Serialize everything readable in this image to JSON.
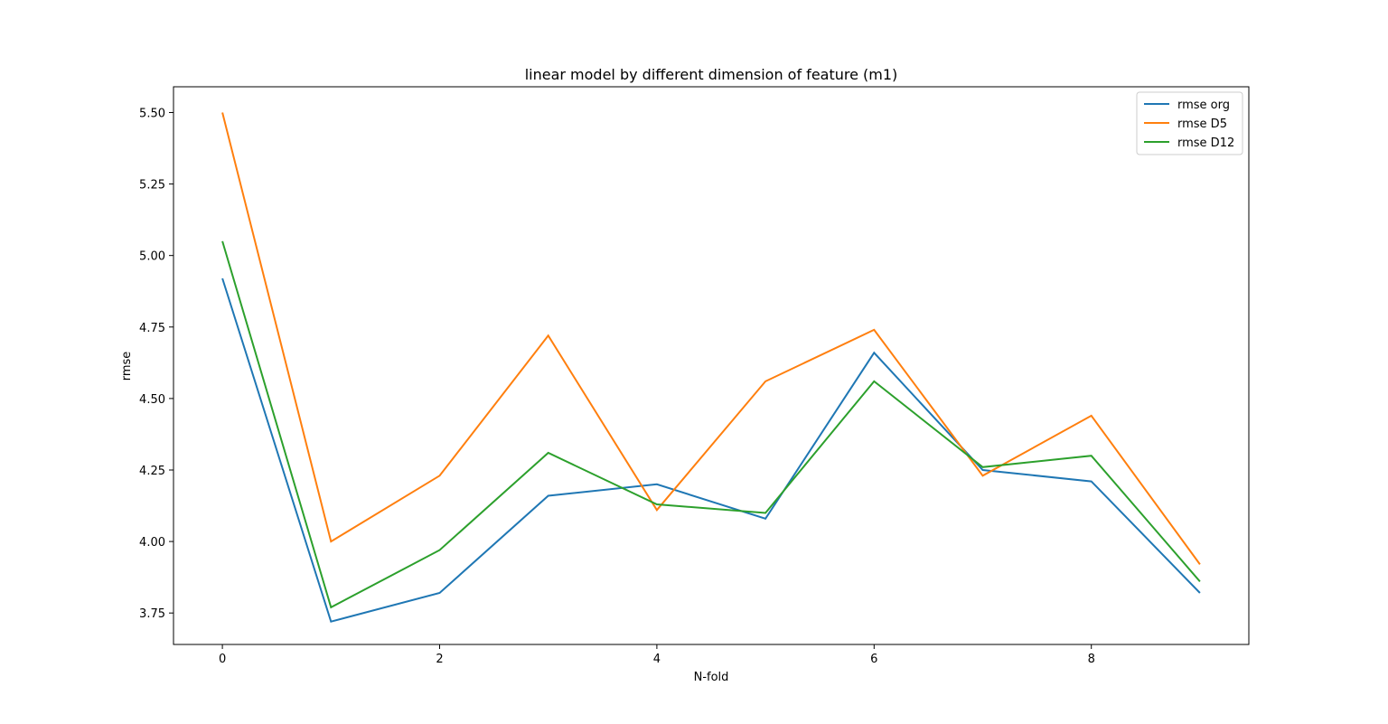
{
  "chart_data": {
    "type": "line",
    "title": "linear model by different dimension of feature (m1)",
    "xlabel": "N-fold",
    "ylabel": "rmse",
    "x": [
      0,
      1,
      2,
      3,
      4,
      5,
      6,
      7,
      8,
      9
    ],
    "xticks": [
      0,
      2,
      4,
      6,
      8
    ],
    "xlim": [
      -0.45,
      9.45
    ],
    "yticks": [
      3.75,
      4.0,
      4.25,
      4.5,
      4.75,
      5.0,
      5.25,
      5.5
    ],
    "ylim": [
      3.64,
      5.59
    ],
    "grid": false,
    "legend_position": "top-right",
    "series": [
      {
        "name": "rmse org",
        "color": "#1f77b4",
        "values": [
          4.92,
          3.72,
          3.82,
          4.16,
          4.2,
          4.08,
          4.66,
          4.25,
          4.21,
          3.82
        ]
      },
      {
        "name": "rmse D5",
        "color": "#ff7f0e",
        "values": [
          5.5,
          4.0,
          4.23,
          4.72,
          4.11,
          4.56,
          4.74,
          4.23,
          4.44,
          3.92
        ]
      },
      {
        "name": "rmse D12",
        "color": "#2ca02c",
        "values": [
          5.05,
          3.77,
          3.97,
          4.31,
          4.13,
          4.1,
          4.56,
          4.26,
          4.3,
          3.86
        ]
      }
    ]
  }
}
